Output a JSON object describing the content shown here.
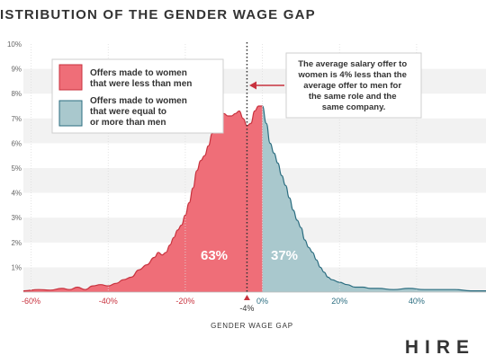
{
  "header": {
    "title": "ISTRIBUTION OF THE GENDER WAGE GAP"
  },
  "brand": {
    "logo": "HIRE"
  },
  "colors": {
    "women_less": "#ef6e78",
    "women_less_stroke": "#c8323e",
    "women_equal_more": "#a9c8cd",
    "women_equal_more_stroke": "#2b6d80",
    "neg_tick": "#c8323e",
    "pos_tick": "#2b6d80",
    "band": "#f2f2f2",
    "text": "#333333"
  },
  "chart_data": {
    "type": "area",
    "xlabel": "GENDER WAGE GAP",
    "ylim": [
      0,
      10
    ],
    "xlim": [
      -62,
      58
    ],
    "y_ticks": [
      1,
      2,
      3,
      4,
      5,
      6,
      7,
      8,
      9,
      10
    ],
    "y_tick_labels": [
      "1%",
      "2%",
      "3%",
      "4%",
      "5%",
      "6%",
      "7%",
      "8%",
      "9%",
      "10%"
    ],
    "x_ticks": [
      -60,
      -40,
      -20,
      0,
      20,
      40
    ],
    "x_tick_labels": [
      "-60%",
      "-40%",
      "-20%",
      "0%",
      "20%",
      "40%"
    ],
    "grid": "alternating horizontal bands",
    "series": [
      {
        "name": "Offers made to women that were less than men",
        "share_label": "63%",
        "x": [
          -62,
          -58,
          -55,
          -52,
          -50,
          -48,
          -46,
          -44,
          -42,
          -40,
          -38,
          -36,
          -34,
          -32,
          -30,
          -28,
          -27,
          -26,
          -25,
          -24,
          -23,
          -22,
          -21,
          -20,
          -19,
          -18,
          -17,
          -16,
          -15,
          -14,
          -13,
          -12,
          -11,
          -10,
          -9,
          -8,
          -7,
          -6,
          -5,
          -4,
          -3,
          -2,
          -1,
          0
        ],
        "values": [
          0.05,
          0.1,
          0.08,
          0.15,
          0.1,
          0.2,
          0.1,
          0.25,
          0.3,
          0.25,
          0.35,
          0.5,
          0.6,
          0.9,
          1.1,
          1.4,
          1.6,
          1.5,
          1.6,
          1.9,
          2.2,
          2.5,
          2.7,
          3.1,
          3.6,
          4.2,
          4.9,
          5.3,
          5.5,
          5.9,
          6.4,
          6.6,
          6.9,
          7.2,
          7.1,
          7.1,
          7.2,
          7.3,
          7.0,
          6.7,
          6.8,
          7.3,
          7.5,
          7.5
        ]
      },
      {
        "name": "Offers made to women that were equal to or more than men",
        "share_label": "37%",
        "x": [
          0,
          1,
          2,
          3,
          4,
          5,
          6,
          7,
          8,
          9,
          10,
          11,
          12,
          13,
          14,
          15,
          16,
          17,
          18,
          20,
          22,
          24,
          26,
          28,
          30,
          34,
          38,
          42,
          46,
          50,
          54,
          58
        ],
        "values": [
          7.5,
          6.8,
          6.0,
          5.6,
          5.2,
          4.7,
          4.3,
          3.8,
          3.3,
          2.9,
          2.6,
          2.1,
          1.8,
          1.6,
          1.3,
          1.0,
          0.8,
          0.6,
          0.5,
          0.4,
          0.3,
          0.2,
          0.2,
          0.15,
          0.15,
          0.1,
          0.15,
          0.1,
          0.1,
          0.1,
          0.05,
          0.05
        ]
      }
    ],
    "marker": {
      "x": -4,
      "label": "-4%"
    },
    "annotation": "The average salary offer to women is 4% less than the average offer to men for the same role and the same company.",
    "legend": "top-left"
  }
}
